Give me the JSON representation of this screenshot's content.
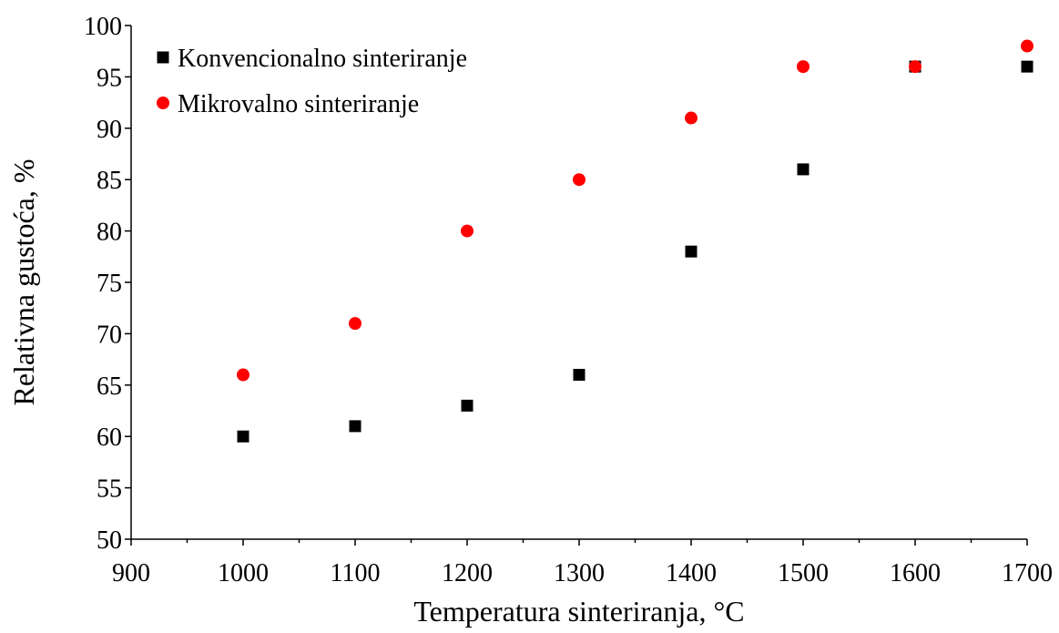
{
  "chart_data": {
    "type": "scatter",
    "xlabel": "Temperatura sinteriranja, °C",
    "ylabel": "Relativna gustoća, %",
    "xlim": [
      900,
      1700
    ],
    "ylim": [
      50,
      100
    ],
    "x_ticks": [
      900,
      1000,
      1100,
      1200,
      1300,
      1400,
      1500,
      1600,
      1700
    ],
    "y_ticks": [
      50,
      55,
      60,
      65,
      70,
      75,
      80,
      85,
      90,
      95,
      100
    ],
    "grid": false,
    "legend_position": "top-left",
    "series": [
      {
        "name": "Konvencionalno sinteriranje",
        "marker": "square",
        "color": "#000000",
        "x": [
          1000,
          1100,
          1200,
          1300,
          1400,
          1500,
          1600,
          1700
        ],
        "y": [
          60,
          61,
          63,
          66,
          78,
          86,
          96,
          96
        ]
      },
      {
        "name": "Mikrovalno sinteriranje",
        "marker": "circle",
        "color": "#ff0000",
        "x": [
          1000,
          1100,
          1200,
          1300,
          1400,
          1500,
          1600,
          1700
        ],
        "y": [
          66,
          71,
          80,
          85,
          91,
          96,
          96,
          98
        ]
      }
    ]
  }
}
